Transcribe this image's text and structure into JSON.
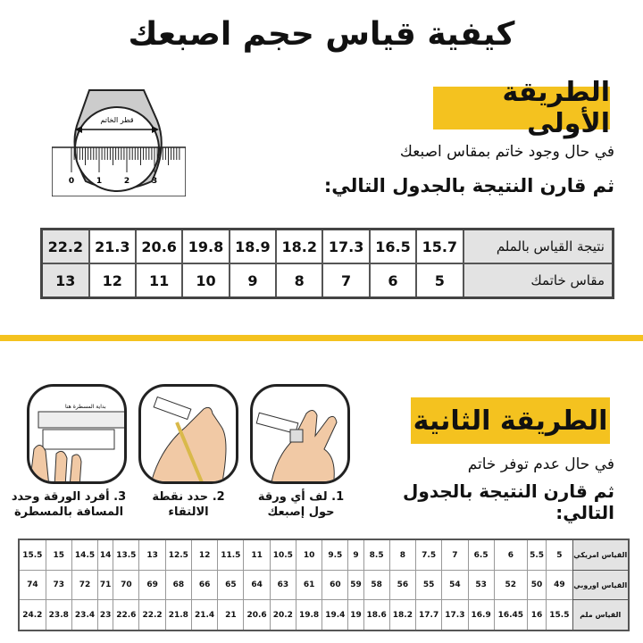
{
  "title": "كيفية قياس حجم اصبعك",
  "method1": {
    "heading": "الطريقة الأولى",
    "line1": "في حال وجود خاتم بمقاس اصبعك",
    "line2": "ثم قارن النتيجة بالجدول التالي:",
    "illustration": {
      "label": "قطر الخاتم",
      "ruler_ticks": [
        "0",
        "1",
        "2",
        "3"
      ]
    },
    "table": {
      "row1_header": "نتيجة القياس بالملم",
      "row1": [
        "15.7",
        "16.5",
        "17.3",
        "18.2",
        "18.9",
        "19.8",
        "20.6",
        "21.3",
        "22.2"
      ],
      "row2_header": "مقاس خاتمك",
      "row2": [
        "5",
        "6",
        "7",
        "8",
        "9",
        "10",
        "11",
        "12",
        "13"
      ]
    }
  },
  "method2": {
    "heading": "الطريقة الثانية",
    "line1": "في حال عدم توفر خاتم",
    "line2": "ثم قارن النتيجة بالجدول التالي:",
    "steps": [
      {
        "caption": "1. لف أي ورقة حول إصبعك"
      },
      {
        "caption": "2. حدد نقطة الالتقاء"
      },
      {
        "caption": "3. أفرد الورقة وحدد المسافة بالمسطرة",
        "ruler_label": "بداية المسطرة هنا"
      }
    ],
    "table": {
      "us_header": "القياس امريكي",
      "us": [
        "5",
        "5.5",
        "6",
        "6.5",
        "7",
        "7.5",
        "8",
        "8.5",
        "9",
        "9.5",
        "10",
        "10.5",
        "11",
        "11.5",
        "12",
        "12.5",
        "13",
        "13.5",
        "14",
        "14.5",
        "15",
        "15.5"
      ],
      "eu_header": "القياس اوروبي",
      "eu": [
        "49",
        "50",
        "52",
        "53",
        "54",
        "55",
        "56",
        "58",
        "59",
        "60",
        "61",
        "63",
        "64",
        "65",
        "66",
        "68",
        "69",
        "70",
        "71",
        "72",
        "73",
        "74"
      ],
      "mm_header": "القياس ملم",
      "mm": [
        "15.5",
        "16",
        "16.45",
        "16.9",
        "17.3",
        "17.7",
        "18.2",
        "18.6",
        "19",
        "19.4",
        "19.8",
        "20.2",
        "20.6",
        "21",
        "21.4",
        "21.8",
        "22.2",
        "22.6",
        "23",
        "23.4",
        "23.8",
        "24.2"
      ]
    }
  },
  "colors": {
    "accent": "#f4c21f",
    "header_cell": "#e3e3e3"
  }
}
